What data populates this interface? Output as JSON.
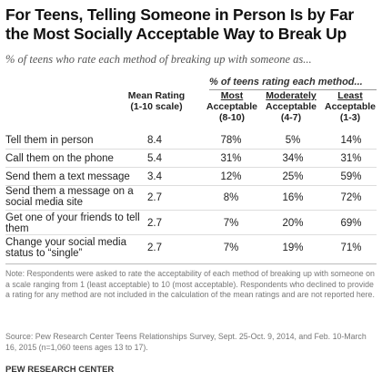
{
  "title": "For Teens, Telling Someone in Person Is by Far the Most Socially Acceptable Way to Break Up",
  "subtitle": "% of teens who rate each method of breaking up with someone as...",
  "chart_data": {
    "type": "table",
    "group_header": "% of teens rating each method...",
    "columns": [
      {
        "key": "mean",
        "line1": "Mean Rating",
        "line2": "(1-10 scale)"
      },
      {
        "key": "most",
        "line1": "Most",
        "line2": "Acceptable",
        "line3": "(8-10)"
      },
      {
        "key": "moderately",
        "line1": "Moderately",
        "line2": "Acceptable",
        "line3": "(4-7)"
      },
      {
        "key": "least",
        "line1": "Least",
        "line2": "Acceptable",
        "line3": "(1-3)"
      }
    ],
    "rows": [
      {
        "label": "Tell them in person",
        "mean": "8.4",
        "most": "78%",
        "moderately": "5%",
        "least": "14%"
      },
      {
        "label": "Call them on the phone",
        "mean": "5.4",
        "most": "31%",
        "moderately": "34%",
        "least": "31%"
      },
      {
        "label": "Send them a text message",
        "mean": "3.4",
        "most": "12%",
        "moderately": "25%",
        "least": "59%"
      },
      {
        "label": "Send them a message on a social media site",
        "mean": "2.7",
        "most": "8%",
        "moderately": "16%",
        "least": "72%"
      },
      {
        "label": "Get one of your friends to tell them",
        "mean": "2.7",
        "most": "7%",
        "moderately": "20%",
        "least": "69%"
      },
      {
        "label": "Change your social media status to “single”",
        "mean": "2.7",
        "most": "7%",
        "moderately": "19%",
        "least": "71%"
      }
    ]
  },
  "note": "Note: Respondents were asked to rate the acceptability of each method of breaking up with someone on a scale ranging from 1 (least acceptable) to 10 (most acceptable). Respondents who declined to provide a rating for any method are not included in the calculation of the mean ratings and are not reported here.",
  "source": "Source: Pew Research Center Teens Relationships Survey, Sept. 25-Oct. 9, 2014, and Feb. 10-March 16, 2015 (n=1,060 teens ages 13 to 17).",
  "brand": "PEW RESEARCH CENTER"
}
